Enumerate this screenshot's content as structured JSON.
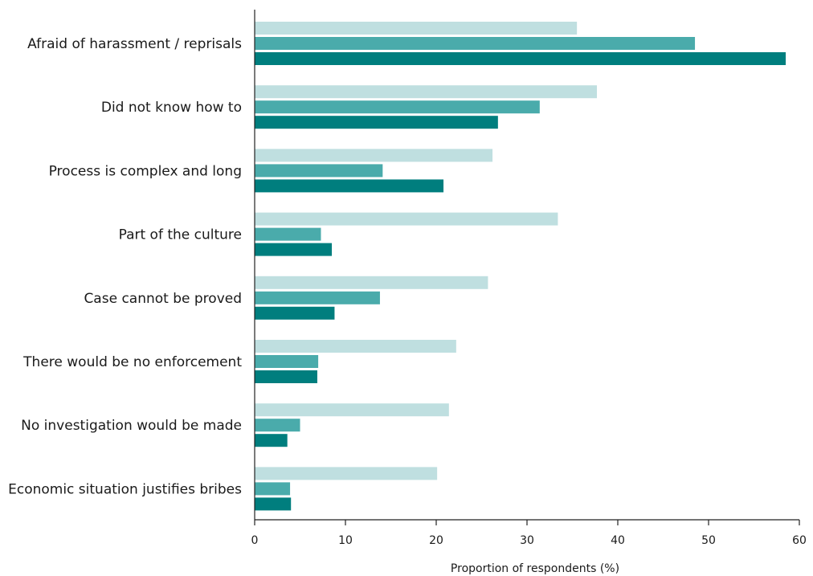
{
  "chart_data": {
    "type": "bar",
    "orientation": "horizontal",
    "categories": [
      "Afraid of harassment / reprisals",
      "Did not know how to",
      "Process is complex and long",
      "Part of the culture",
      "Case cannot be proved",
      "There would be no enforcement",
      "No investigation would be made",
      "Economic situation justifies bribes"
    ],
    "series": [
      {
        "values": [
          35.5,
          37.7,
          26.2,
          33.4,
          25.7,
          22.2,
          21.4,
          20.1
        ],
        "color": "#bfdfe0"
      },
      {
        "values": [
          48.5,
          31.4,
          14.1,
          7.3,
          13.8,
          7.0,
          5.0,
          3.9
        ],
        "color": "#4aabab"
      },
      {
        "values": [
          58.5,
          26.8,
          20.8,
          8.5,
          8.8,
          6.9,
          3.6,
          4.0
        ],
        "color": "#007e7e"
      }
    ],
    "xlabel": "Proportion of respondents (%)",
    "ylabel": "",
    "xlim": [
      0,
      60
    ],
    "xticks": [
      0,
      10,
      20,
      30,
      40,
      50,
      60
    ],
    "grid": false,
    "legend": "none"
  }
}
